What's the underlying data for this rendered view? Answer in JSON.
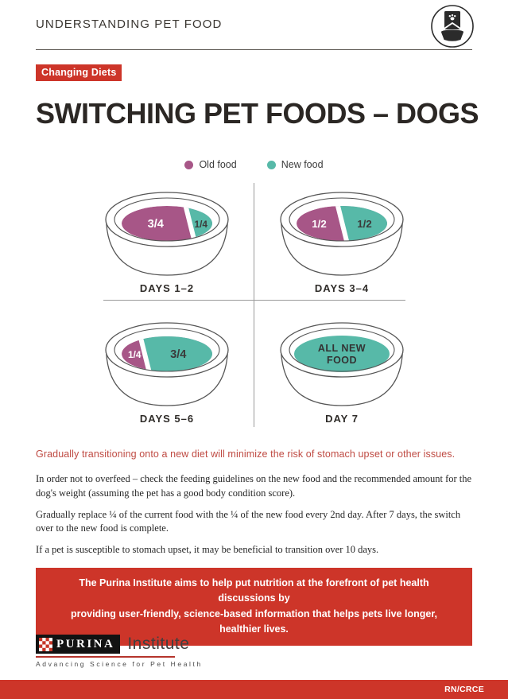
{
  "header": {
    "title": "UNDERSTANDING PET FOOD",
    "icon": "pet-food-bag-and-bowl-icon"
  },
  "badge": {
    "label": "Changing Diets"
  },
  "title": "SWITCHING PET FOODS – DOGS",
  "legend": {
    "items": [
      {
        "label": "Old food",
        "color": "#a75687"
      },
      {
        "label": "New food",
        "color": "#57b9a8"
      }
    ]
  },
  "bowls": [
    {
      "label": "DAYS 1–2",
      "slices": [
        {
          "food": "old",
          "text": "3/4",
          "fraction": 0.75
        },
        {
          "food": "new",
          "text": "1/4",
          "fraction": 0.25
        }
      ]
    },
    {
      "label": "DAYS 3–4",
      "slices": [
        {
          "food": "old",
          "text": "1/2",
          "fraction": 0.5
        },
        {
          "food": "new",
          "text": "1/2",
          "fraction": 0.5
        }
      ]
    },
    {
      "label": "DAYS 5–6",
      "slices": [
        {
          "food": "old",
          "text": "1/4",
          "fraction": 0.25
        },
        {
          "food": "new",
          "text": "3/4",
          "fraction": 0.75
        }
      ]
    },
    {
      "label": "DAY 7",
      "slices": [
        {
          "food": "new",
          "text": "ALL NEW FOOD",
          "fraction": 1.0
        }
      ]
    }
  ],
  "highlight": "Gradually transitioning onto a new diet will minimize the risk of stomach upset or other issues.",
  "paragraphs": [
    "In order not to overfeed – check the feeding guidelines on the new food and the recommended amount for the dog's weight (assuming the pet has a good body condition score).",
    "Gradually replace ¼ of the current food with the ¼ of the new food every 2nd day. After 7 days, the switch over to the new food is complete.",
    "If a pet is susceptible to stomach upset, it may be beneficial to transition over 10 days."
  ],
  "callout": {
    "lines": [
      "The Purina Institute aims to help put nutrition at the forefront of pet health discussions by",
      "providing user-friendly, science-based information that helps pets live longer, healthier lives."
    ]
  },
  "footer": {
    "logo_brand": "PURINA",
    "logo_name": "Institute",
    "tagline": "Advancing Science for Pet Health",
    "code": "RN/CRCE"
  },
  "colors": {
    "accent_red": "#cd3529",
    "old_food": "#a75687",
    "new_food": "#57b9a8",
    "highlight_red": "#bf4a42"
  }
}
